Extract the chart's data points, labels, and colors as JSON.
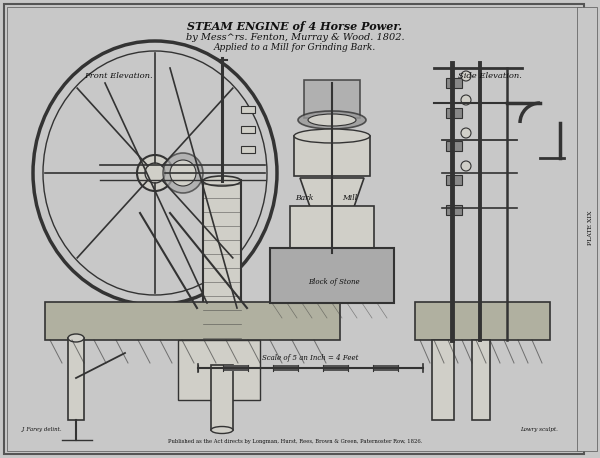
{
  "title_line1": "STEAM ENGINE of 4 Horse Power.",
  "title_line2": "by Mess^rs. Fenton, Murray & Wood. 1802.",
  "title_line3": "Applied to a Mill for Grinding Bark.",
  "label_front": "Front Elevation.",
  "label_side": "Side Elevation.",
  "label_bark": "Bark",
  "label_mill": "Mill",
  "label_block": "Block of Stone",
  "scale_text": "Scale of 5 an Inch = 4 Feet",
  "bottom_text": "Published as the Act directs by Longman, Hurst, Rees, Brown & Green, Paternoster Row, 1826.",
  "left_credit": "J. Farey delint.",
  "right_credit": "Lowry sculpt.",
  "plate_text": "PLATE XIX",
  "bg_color": "#c8c8c8",
  "drawing_bg": "#d0cfc8",
  "border_color": "#555555",
  "line_color": "#333333",
  "text_color": "#111111"
}
